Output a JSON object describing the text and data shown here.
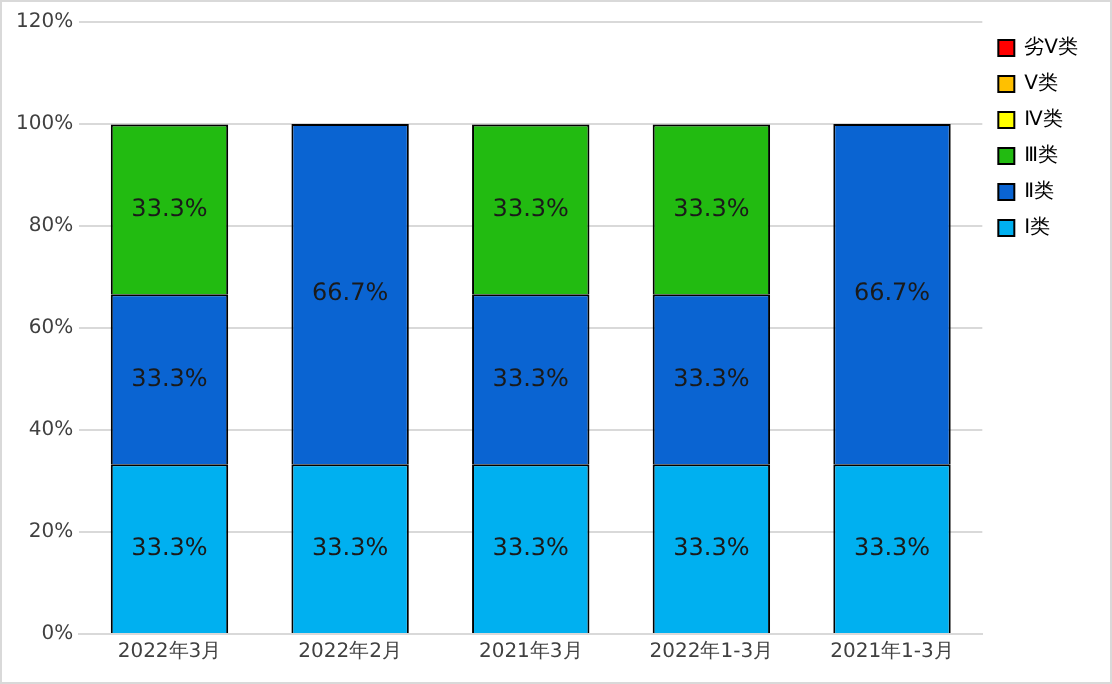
{
  "chart_data": {
    "type": "bar",
    "stacked": true,
    "categories": [
      "2022年3月",
      "2022年2月",
      "2021年3月",
      "2022年1-3月",
      "2021年1-3月"
    ],
    "series": [
      {
        "name": "Ⅰ类",
        "color": "#00b0f0",
        "values": [
          33.3,
          33.3,
          33.3,
          33.3,
          33.3
        ],
        "value_labels": [
          "33.3%",
          "33.3%",
          "33.3%",
          "33.3%",
          "33.3%"
        ]
      },
      {
        "name": "Ⅱ类",
        "color": "#0a64d2",
        "values": [
          33.3,
          66.7,
          33.3,
          33.3,
          66.7
        ],
        "value_labels": [
          "33.3%",
          "66.7%",
          "33.3%",
          "33.3%",
          "66.7%"
        ]
      },
      {
        "name": "Ⅲ类",
        "color": "#22bb11",
        "values": [
          33.3,
          0,
          33.3,
          33.3,
          0
        ],
        "value_labels": [
          "33.3%",
          null,
          "33.3%",
          "33.3%",
          null
        ]
      },
      {
        "name": "Ⅳ类",
        "color": "#ffff00",
        "values": [
          0,
          0,
          0,
          0,
          0
        ]
      },
      {
        "name": "Ⅴ类",
        "color": "#ffc000",
        "values": [
          0,
          0,
          0,
          0,
          0
        ]
      },
      {
        "name": "劣Ⅴ类",
        "color": "#ff0000",
        "values": [
          0,
          0,
          0,
          0,
          0
        ]
      }
    ],
    "ylim": [
      0,
      120
    ],
    "yticks": [
      {
        "value": 0,
        "label": "0%"
      },
      {
        "value": 20,
        "label": "20%"
      },
      {
        "value": 40,
        "label": "40%"
      },
      {
        "value": 60,
        "label": "60%"
      },
      {
        "value": 80,
        "label": "80%"
      },
      {
        "value": 100,
        "label": "100%"
      },
      {
        "value": 120,
        "label": "120%"
      }
    ],
    "grid": "y",
    "legend": "top right"
  }
}
